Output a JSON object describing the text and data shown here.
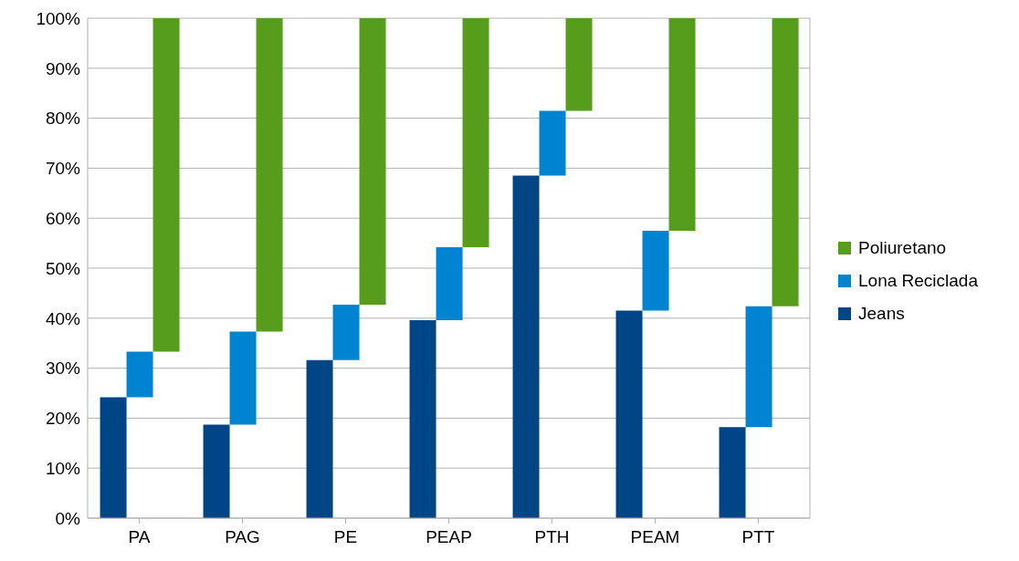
{
  "chart_data": {
    "type": "bar",
    "categories": [
      "PA",
      "PAG",
      "PE",
      "PEAP",
      "PTH",
      "PEAM",
      "PTT"
    ],
    "series": [
      {
        "name": "Jeans",
        "color": "#004586",
        "values": [
          24.2,
          18.7,
          31.6,
          39.6,
          68.5,
          41.5,
          18.2
        ]
      },
      {
        "name": "Lona Reciclada",
        "color": "#0084d1",
        "values": [
          9.1,
          18.6,
          11.1,
          14.6,
          13.0,
          16.0,
          24.2
        ],
        "base": [
          24.2,
          18.7,
          31.6,
          39.6,
          68.5,
          41.5,
          18.2
        ]
      },
      {
        "name": "Poliuretano",
        "color": "#579d1c",
        "values": [
          66.7,
          62.7,
          57.3,
          45.8,
          18.5,
          42.5,
          57.6
        ],
        "base": [
          33.3,
          37.3,
          42.7,
          54.2,
          81.5,
          57.5,
          42.4
        ]
      }
    ],
    "ylim": [
      0,
      100
    ],
    "yticks": [
      {
        "value": 0,
        "label": "0%"
      },
      {
        "value": 10,
        "label": "10%"
      },
      {
        "value": 20,
        "label": "20%"
      },
      {
        "value": 30,
        "label": "30%"
      },
      {
        "value": 40,
        "label": "40%"
      },
      {
        "value": 50,
        "label": "50%"
      },
      {
        "value": 60,
        "label": "60%"
      },
      {
        "value": 70,
        "label": "70%"
      },
      {
        "value": 80,
        "label": "80%"
      },
      {
        "value": 90,
        "label": "90%"
      },
      {
        "value": 100,
        "label": "100%"
      }
    ],
    "grid": "y",
    "legend": "right"
  }
}
